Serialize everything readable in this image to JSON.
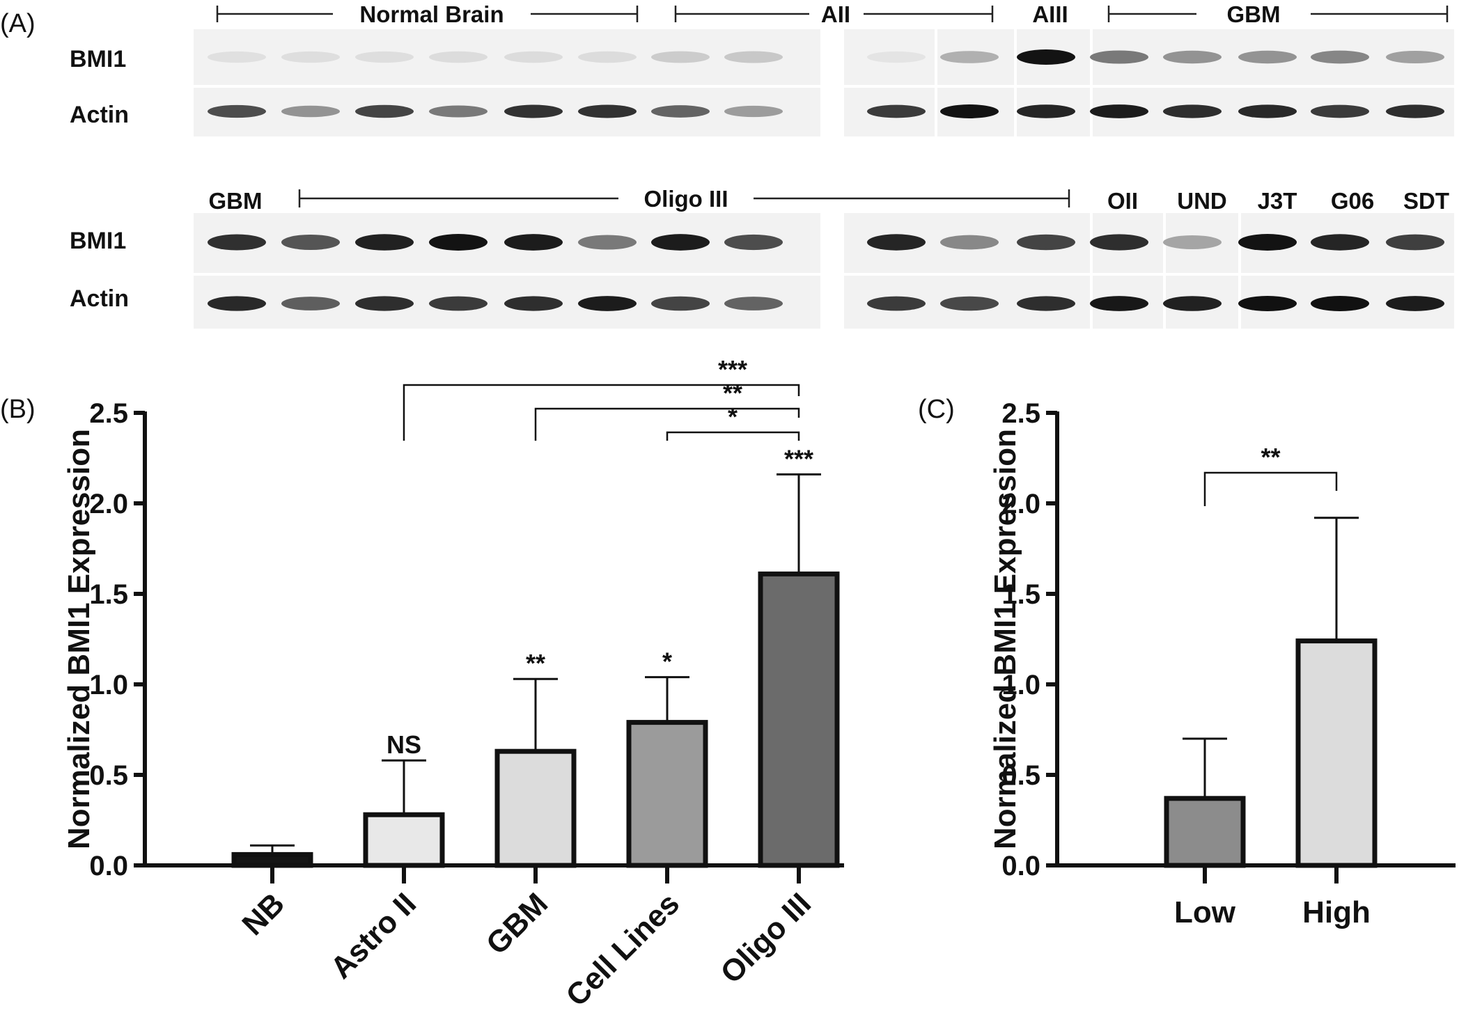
{
  "panelA": {
    "panel_label": "(A)",
    "row_labels": {
      "bmi1": "BMI1",
      "actin": "Actin"
    },
    "top_groups": [
      "Normal Brain",
      "AII",
      "AIII",
      "GBM"
    ],
    "bottom_groups": [
      "GBM",
      "Oligo III",
      "OII",
      "UND",
      "J3T",
      "G06",
      "SDT"
    ],
    "band_intensity": {
      "top_bmi1": [
        0.05,
        0.06,
        0.06,
        0.07,
        0.07,
        0.07,
        0.14,
        0.16,
        0.03,
        0.27,
        0.98,
        0.52,
        0.4,
        0.4,
        0.46,
        0.34
      ],
      "top_actin": [
        0.72,
        0.4,
        0.76,
        0.52,
        0.84,
        0.84,
        0.62,
        0.36,
        0.8,
        0.98,
        0.9,
        0.94,
        0.86,
        0.88,
        0.8,
        0.86
      ],
      "bottom_bmi1": [
        0.85,
        0.68,
        0.92,
        0.98,
        0.94,
        0.52,
        0.94,
        0.72,
        0.9,
        0.45,
        0.76,
        0.86,
        0.32,
        0.98,
        0.9,
        0.78
      ],
      "bottom_actin": [
        0.88,
        0.64,
        0.86,
        0.8,
        0.86,
        0.94,
        0.76,
        0.62,
        0.8,
        0.74,
        0.86,
        0.96,
        0.92,
        0.99,
        0.99,
        0.94
      ]
    }
  },
  "chart_data": [
    {
      "panel_label": "(B)",
      "type": "bar",
      "ylabel": "Normalized BMI1 Expression",
      "xlabel": "",
      "ylim": [
        0,
        2.5
      ],
      "yticks": [
        "0.0",
        "0.5",
        "1.0",
        "1.5",
        "2.0",
        "2.5"
      ],
      "categories": [
        "NB",
        "Astro II",
        "GBM",
        "Cell Lines",
        "Oligo III"
      ],
      "values": [
        0.06,
        0.28,
        0.63,
        0.79,
        1.61
      ],
      "errors": [
        0.05,
        0.3,
        0.4,
        0.25,
        0.55
      ],
      "bar_colors": [
        "#151515",
        "#e8e8e8",
        "#dcdcdc",
        "#9b9b9b",
        "#6b6b6b"
      ],
      "bar_labels": [
        "",
        "NS",
        "**",
        "*",
        "***"
      ],
      "comparisons": [
        {
          "from": "Astro II",
          "to": "Oligo III",
          "label": "***"
        },
        {
          "from": "GBM",
          "to": "Oligo III",
          "label": "**"
        },
        {
          "from": "Cell Lines",
          "to": "Oligo III",
          "label": "*"
        }
      ]
    },
    {
      "panel_label": "(C)",
      "type": "bar",
      "ylabel": "Normalized BMI1 Expression",
      "xlabel": "",
      "ylim": [
        0,
        2.5
      ],
      "yticks": [
        "0.0",
        "0.5",
        "1.0",
        "1.5",
        "2.0",
        "2.5"
      ],
      "categories": [
        "Low",
        "High"
      ],
      "values": [
        0.37,
        1.24
      ],
      "errors": [
        0.33,
        0.68
      ],
      "bar_colors": [
        "#8c8c8c",
        "#dcdcdc"
      ],
      "comparisons": [
        {
          "from": "Low",
          "to": "High",
          "label": "**"
        }
      ]
    }
  ]
}
